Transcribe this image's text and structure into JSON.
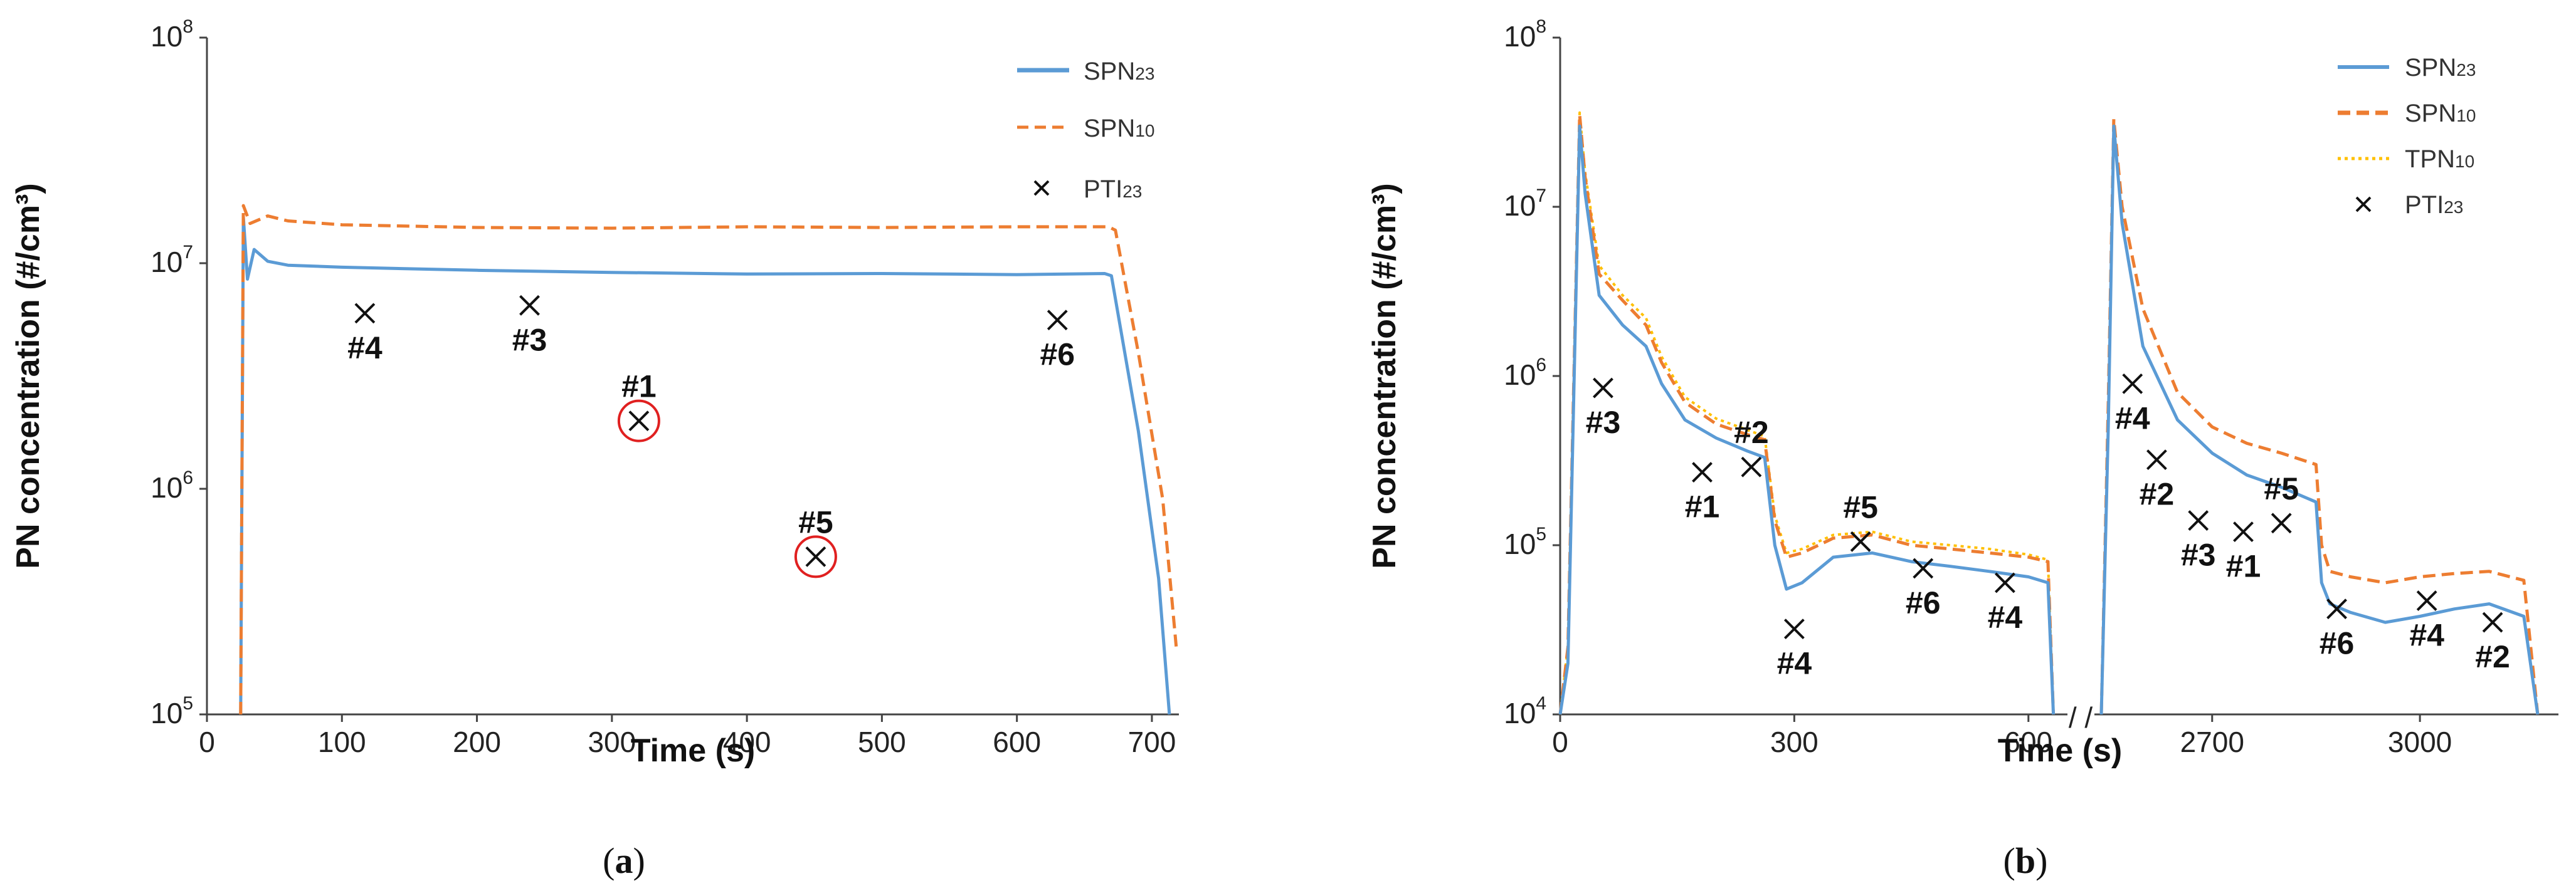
{
  "chart_data": [
    {
      "type": "line",
      "panel": "a",
      "caption": {
        "open": "(",
        "letter": "a",
        "close": ")"
      },
      "xlabel": "Time (s)",
      "ylabel": "PN concentration (#/cm³)",
      "yscale": "log",
      "ylim": [
        100000,
        100000000
      ],
      "xlim": [
        0,
        720
      ],
      "x_ticks": [
        "0",
        "100",
        "200",
        "300",
        "400",
        "500",
        "600",
        "700"
      ],
      "y_ticks": [
        {
          "base": "10",
          "exp": "5"
        },
        {
          "base": "10",
          "exp": "6"
        },
        {
          "base": "10",
          "exp": "7"
        },
        {
          "base": "10",
          "exp": "8"
        }
      ],
      "legend": {
        "position": "top-right",
        "entries": [
          {
            "main": "SPN",
            "sub": "23",
            "series": "SPN23"
          },
          {
            "main": "SPN",
            "sub": "10",
            "series": "SPN10"
          },
          {
            "main": "PTI",
            "sub": "23",
            "series": "PTI23"
          }
        ]
      },
      "series": [
        {
          "name": "SPN23",
          "color": "#5b9bd5",
          "style": "solid",
          "points": [
            [
              25,
              100000
            ],
            [
              27,
              16000000
            ],
            [
              30,
              8500000
            ],
            [
              35,
              11500000
            ],
            [
              45,
              10200000
            ],
            [
              60,
              9800000
            ],
            [
              100,
              9600000
            ],
            [
              200,
              9300000
            ],
            [
              300,
              9100000
            ],
            [
              400,
              8950000
            ],
            [
              500,
              9000000
            ],
            [
              600,
              8900000
            ],
            [
              665,
              9000000
            ],
            [
              670,
              8800000
            ],
            [
              690,
              1800000
            ],
            [
              705,
              400000
            ],
            [
              713,
              100000
            ]
          ]
        },
        {
          "name": "SPN10",
          "color": "#ed7d31",
          "style": "dashed",
          "points": [
            [
              25,
              100000
            ],
            [
              27,
              18000000
            ],
            [
              32,
              15000000
            ],
            [
              45,
              16200000
            ],
            [
              60,
              15400000
            ],
            [
              100,
              14800000
            ],
            [
              200,
              14400000
            ],
            [
              300,
              14300000
            ],
            [
              400,
              14500000
            ],
            [
              500,
              14400000
            ],
            [
              600,
              14500000
            ],
            [
              668,
              14500000
            ],
            [
              673,
              14000000
            ],
            [
              690,
              4000000
            ],
            [
              708,
              900000
            ],
            [
              718,
              200000
            ]
          ]
        }
      ],
      "markers": [
        {
          "label": "#4",
          "x": 117,
          "y": 6000000,
          "pos": "below",
          "circled": false
        },
        {
          "label": "#3",
          "x": 239,
          "y": 6500000,
          "pos": "below",
          "circled": false
        },
        {
          "label": "#1",
          "x": 320,
          "y": 2000000,
          "pos": "above",
          "circled": true
        },
        {
          "label": "#5",
          "x": 451,
          "y": 500000,
          "pos": "above",
          "circled": true
        },
        {
          "label": "#6",
          "x": 630,
          "y": 5600000,
          "pos": "below",
          "circled": false
        }
      ]
    },
    {
      "type": "line",
      "panel": "b",
      "caption": {
        "open": "(",
        "letter": "b",
        "close": ")"
      },
      "xlabel": "Time (s)",
      "ylabel": "PN concentration (#/cm³)",
      "yscale": "log",
      "ylim": [
        10000,
        100000000
      ],
      "broken_x_axis": {
        "break_symbol": "/ /",
        "segment1": [
          0,
          650
        ],
        "segment2": [
          2530,
          3200
        ]
      },
      "x_ticks": [
        {
          "label": "0",
          "value": 0
        },
        {
          "label": "300",
          "value": 300
        },
        {
          "label": "600",
          "value": 600
        },
        {
          "label": "2700",
          "value": 2700
        },
        {
          "label": "3000",
          "value": 3000
        }
      ],
      "y_ticks": [
        {
          "base": "10",
          "exp": "4"
        },
        {
          "base": "10",
          "exp": "5"
        },
        {
          "base": "10",
          "exp": "6"
        },
        {
          "base": "10",
          "exp": "7"
        },
        {
          "base": "10",
          "exp": "8"
        }
      ],
      "legend": {
        "position": "top-right",
        "entries": [
          {
            "main": "SPN",
            "sub": "23",
            "series": "SPN23"
          },
          {
            "main": "SPN",
            "sub": "10",
            "series": "SPN10"
          },
          {
            "main": "TPN",
            "sub": "10",
            "series": "TPN10"
          },
          {
            "main": "PTI",
            "sub": "23",
            "series": "PTI23"
          }
        ]
      },
      "series": [
        {
          "name": "SPN23",
          "color": "#5b9bd5",
          "style": "solid",
          "segment1": [
            [
              0,
              10000
            ],
            [
              10,
              20000
            ],
            [
              18,
              1000000
            ],
            [
              25,
              30000000
            ],
            [
              32,
              12000000
            ],
            [
              50,
              3000000
            ],
            [
              80,
              2000000
            ],
            [
              110,
              1500000
            ],
            [
              130,
              900000
            ],
            [
              160,
              550000
            ],
            [
              200,
              430000
            ],
            [
              240,
              360000
            ],
            [
              262,
              330000
            ],
            [
              275,
              100000
            ],
            [
              290,
              55000
            ],
            [
              310,
              60000
            ],
            [
              350,
              85000
            ],
            [
              400,
              90000
            ],
            [
              450,
              80000
            ],
            [
              500,
              75000
            ],
            [
              550,
              70000
            ],
            [
              600,
              65000
            ],
            [
              625,
              60000
            ],
            [
              632,
              10000
            ]
          ],
          "segment2": [
            [
              2540,
              10000
            ],
            [
              2550,
              500000
            ],
            [
              2558,
              30000000
            ],
            [
              2570,
              8000000
            ],
            [
              2600,
              1500000
            ],
            [
              2650,
              550000
            ],
            [
              2700,
              350000
            ],
            [
              2750,
              260000
            ],
            [
              2800,
              220000
            ],
            [
              2850,
              180000
            ],
            [
              2858,
              60000
            ],
            [
              2870,
              45000
            ],
            [
              2900,
              40000
            ],
            [
              2950,
              35000
            ],
            [
              3000,
              38000
            ],
            [
              3050,
              42000
            ],
            [
              3100,
              45000
            ],
            [
              3150,
              38000
            ],
            [
              3170,
              10000
            ]
          ]
        },
        {
          "name": "SPN10",
          "color": "#ed7d31",
          "style": "dashed",
          "segment1": [
            [
              0,
              10000
            ],
            [
              10,
              25000
            ],
            [
              18,
              1200000
            ],
            [
              25,
              35000000
            ],
            [
              32,
              15000000
            ],
            [
              50,
              4000000
            ],
            [
              80,
              2800000
            ],
            [
              110,
              2000000
            ],
            [
              130,
              1200000
            ],
            [
              160,
              700000
            ],
            [
              200,
              520000
            ],
            [
              240,
              450000
            ],
            [
              262,
              420000
            ],
            [
              275,
              140000
            ],
            [
              290,
              85000
            ],
            [
              310,
              90000
            ],
            [
              350,
              110000
            ],
            [
              400,
              115000
            ],
            [
              450,
              100000
            ],
            [
              500,
              95000
            ],
            [
              550,
              90000
            ],
            [
              600,
              85000
            ],
            [
              625,
              80000
            ],
            [
              632,
              10000
            ]
          ],
          "segment2": [
            [
              2540,
              10000
            ],
            [
              2550,
              700000
            ],
            [
              2558,
              33000000
            ],
            [
              2570,
              10000000
            ],
            [
              2600,
              2500000
            ],
            [
              2650,
              800000
            ],
            [
              2700,
              500000
            ],
            [
              2750,
              400000
            ],
            [
              2800,
              350000
            ],
            [
              2850,
              300000
            ],
            [
              2858,
              100000
            ],
            [
              2870,
              70000
            ],
            [
              2900,
              65000
            ],
            [
              2950,
              60000
            ],
            [
              3000,
              65000
            ],
            [
              3050,
              68000
            ],
            [
              3100,
              70000
            ],
            [
              3150,
              62000
            ],
            [
              3170,
              10000
            ]
          ]
        },
        {
          "name": "TPN10",
          "color": "#ffc000",
          "style": "dotted",
          "segment1": [
            [
              0,
              10000
            ],
            [
              10,
              25000
            ],
            [
              18,
              1300000
            ],
            [
              25,
              36000000
            ],
            [
              32,
              16000000
            ],
            [
              50,
              4500000
            ],
            [
              80,
              3000000
            ],
            [
              110,
              2200000
            ],
            [
              130,
              1300000
            ],
            [
              160,
              750000
            ],
            [
              200,
              560000
            ],
            [
              240,
              480000
            ],
            [
              262,
              440000
            ],
            [
              275,
              150000
            ],
            [
              290,
              90000
            ],
            [
              310,
              95000
            ],
            [
              350,
              115000
            ],
            [
              400,
              120000
            ],
            [
              450,
              105000
            ],
            [
              500,
              100000
            ],
            [
              550,
              95000
            ],
            [
              600,
              88000
            ],
            [
              625,
              82000
            ],
            [
              632,
              10000
            ]
          ]
        }
      ],
      "markers": [
        {
          "label": "#3",
          "x": 55,
          "y": 850000,
          "pos": "below",
          "circled": false
        },
        {
          "label": "#1",
          "x": 182,
          "y": 270000,
          "pos": "below",
          "circled": false
        },
        {
          "label": "#2",
          "x": 245,
          "y": 290000,
          "pos": "above",
          "circled": false
        },
        {
          "label": "#4",
          "x": 300,
          "y": 32000,
          "pos": "below",
          "circled": false
        },
        {
          "label": "#5",
          "x": 385,
          "y": 105000,
          "pos": "above",
          "circled": false
        },
        {
          "label": "#6",
          "x": 465,
          "y": 73000,
          "pos": "below",
          "circled": false
        },
        {
          "label": "#4",
          "x": 570,
          "y": 60000,
          "pos": "below",
          "circled": false
        },
        {
          "label": "#4",
          "x": 2585,
          "y": 900000,
          "pos": "below",
          "circled": false
        },
        {
          "label": "#2",
          "x": 2620,
          "y": 320000,
          "pos": "below",
          "circled": false
        },
        {
          "label": "#3",
          "x": 2680,
          "y": 140000,
          "pos": "below",
          "circled": false
        },
        {
          "label": "#1",
          "x": 2745,
          "y": 120000,
          "pos": "below",
          "circled": false
        },
        {
          "label": "#5",
          "x": 2800,
          "y": 135000,
          "pos": "above",
          "circled": false
        },
        {
          "label": "#6",
          "x": 2880,
          "y": 42000,
          "pos": "below",
          "circled": false
        },
        {
          "label": "#4",
          "x": 3010,
          "y": 47000,
          "pos": "below",
          "circled": false
        },
        {
          "label": "#2",
          "x": 3105,
          "y": 35000,
          "pos": "below",
          "circled": false
        }
      ]
    }
  ]
}
